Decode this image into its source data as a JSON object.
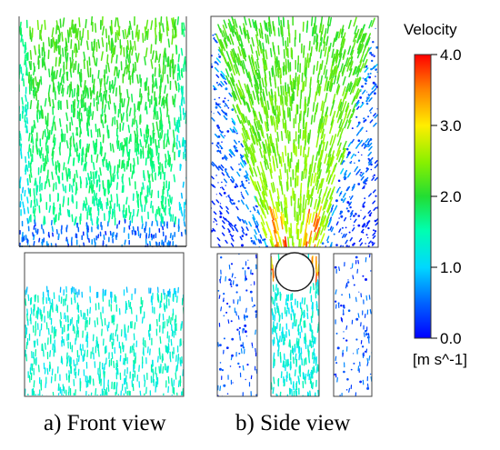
{
  "captions": {
    "front": "a) Front view",
    "side": "b) Side view"
  },
  "colorbar": {
    "title": "Velocity",
    "unit": "[m s^-1]",
    "ticks": [
      "4.0",
      "3.0",
      "2.0",
      "1.0",
      "0.0"
    ],
    "range": [
      0.0,
      4.0
    ],
    "colors": [
      "#0000ff",
      "#0080ff",
      "#00e5ff",
      "#00ff80",
      "#33dd22",
      "#aaff00",
      "#ffff00",
      "#ff8800",
      "#ff0000"
    ]
  }
}
